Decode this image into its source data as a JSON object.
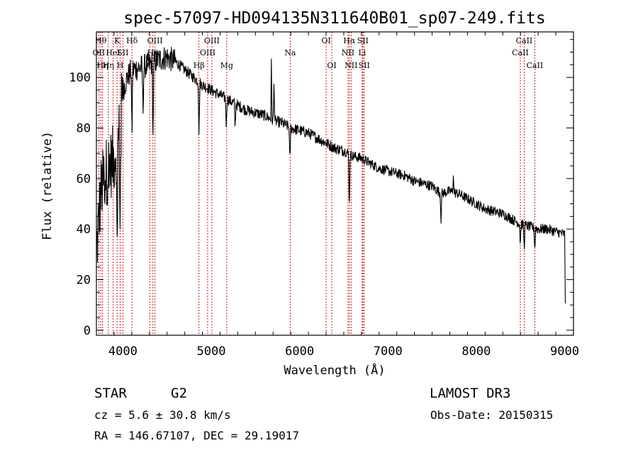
{
  "chart_data": {
    "type": "line",
    "title": "spec-57097-HD094135N311640B01_sp07-249.fits",
    "xlabel": "Wavelength (Å)",
    "ylabel": "Flux (relative)",
    "xlim": [
      3700,
      9100
    ],
    "ylim": [
      -2,
      118
    ],
    "x_ticks": [
      4000,
      5000,
      6000,
      7000,
      8000,
      9000
    ],
    "y_ticks": [
      0,
      20,
      40,
      60,
      80,
      100
    ],
    "continuum": [
      [
        3700,
        30
      ],
      [
        3750,
        55
      ],
      [
        3800,
        62
      ],
      [
        3850,
        65
      ],
      [
        3900,
        68
      ],
      [
        3950,
        75
      ],
      [
        4000,
        95
      ],
      [
        4050,
        100
      ],
      [
        4100,
        103
      ],
      [
        4200,
        104
      ],
      [
        4300,
        105
      ],
      [
        4400,
        107
      ],
      [
        4500,
        108
      ],
      [
        4600,
        106
      ],
      [
        4700,
        103
      ],
      [
        4800,
        100
      ],
      [
        4900,
        97
      ],
      [
        5000,
        95
      ],
      [
        5100,
        93
      ],
      [
        5200,
        91
      ],
      [
        5300,
        89
      ],
      [
        5400,
        87
      ],
      [
        5500,
        86
      ],
      [
        5600,
        85
      ],
      [
        5700,
        83
      ],
      [
        5800,
        82
      ],
      [
        5900,
        80
      ],
      [
        6000,
        79
      ],
      [
        6100,
        78
      ],
      [
        6200,
        76
      ],
      [
        6300,
        74
      ],
      [
        6400,
        72
      ],
      [
        6500,
        71
      ],
      [
        6600,
        69
      ],
      [
        6700,
        68
      ],
      [
        6800,
        66
      ],
      [
        6900,
        64
      ],
      [
        7000,
        63
      ],
      [
        7100,
        62
      ],
      [
        7200,
        61
      ],
      [
        7300,
        59
      ],
      [
        7400,
        58
      ],
      [
        7500,
        57
      ],
      [
        7600,
        54
      ],
      [
        7700,
        55
      ],
      [
        7800,
        54
      ],
      [
        7900,
        52
      ],
      [
        8000,
        50
      ],
      [
        8100,
        48
      ],
      [
        8200,
        47
      ],
      [
        8300,
        46
      ],
      [
        8400,
        44
      ],
      [
        8500,
        42
      ],
      [
        8600,
        41
      ],
      [
        8700,
        40
      ],
      [
        8800,
        40
      ],
      [
        8900,
        39
      ],
      [
        9000,
        38
      ],
      [
        9010,
        5
      ]
    ],
    "absorption_features": [
      [
        3934,
        48
      ],
      [
        3969,
        45
      ],
      [
        4102,
        28
      ],
      [
        4227,
        18
      ],
      [
        4340,
        30
      ],
      [
        4861,
        22
      ],
      [
        5170,
        12
      ],
      [
        5270,
        10
      ],
      [
        5890,
        15
      ],
      [
        6563,
        22
      ],
      [
        7600,
        10
      ],
      [
        8498,
        8
      ],
      [
        8542,
        10
      ],
      [
        8662,
        9
      ]
    ],
    "emission_features": [
      [
        5680,
        22
      ],
      [
        5710,
        18
      ],
      [
        7740,
        8
      ]
    ],
    "spectral_lines": [
      {
        "wavelength": 3727,
        "label": "OII",
        "tier": 1
      },
      {
        "wavelength": 3750,
        "label": "Hθ",
        "tier": 0
      },
      {
        "wavelength": 3770,
        "label": "Hη",
        "tier": 2
      },
      {
        "wavelength": 3835,
        "label": "Hη",
        "tier": 2
      },
      {
        "wavelength": 3889,
        "label": "HeI",
        "tier": 1
      },
      {
        "wavelength": 3934,
        "label": "K",
        "tier": 0
      },
      {
        "wavelength": 3969,
        "label": "H",
        "tier": 2
      },
      {
        "wavelength": 4000,
        "label": "SII",
        "tier": 1
      },
      {
        "wavelength": 4102,
        "label": "Hδ",
        "tier": 0
      },
      {
        "wavelength": 4304,
        "label": "G",
        "tier": 2
      },
      {
        "wavelength": 4340,
        "label": "Hγ",
        "tier": 1
      },
      {
        "wavelength": 4363,
        "label": "OIII",
        "tier": 0
      },
      {
        "wavelength": 4861,
        "label": "Hβ",
        "tier": 2
      },
      {
        "wavelength": 4959,
        "label": "OIII",
        "tier": 1
      },
      {
        "wavelength": 5007,
        "label": "OIII",
        "tier": 0
      },
      {
        "wavelength": 5175,
        "label": "Mg",
        "tier": 2
      },
      {
        "wavelength": 5893,
        "label": "Na",
        "tier": 1
      },
      {
        "wavelength": 6300,
        "label": "OI",
        "tier": 0
      },
      {
        "wavelength": 6364,
        "label": "OI",
        "tier": 2
      },
      {
        "wavelength": 6548,
        "label": "NII",
        "tier": 1
      },
      {
        "wavelength": 6563,
        "label": "Hα",
        "tier": 0
      },
      {
        "wavelength": 6583,
        "label": "NII",
        "tier": 2
      },
      {
        "wavelength": 6708,
        "label": "Li",
        "tier": 1
      },
      {
        "wavelength": 6716,
        "label": "SII",
        "tier": 0
      },
      {
        "wavelength": 6731,
        "label": "SII",
        "tier": 2
      },
      {
        "wavelength": 8498,
        "label": "CaII",
        "tier": 1
      },
      {
        "wavelength": 8542,
        "label": "CaII",
        "tier": 0
      },
      {
        "wavelength": 8662,
        "label": "CaII",
        "tier": 2
      }
    ]
  },
  "info": {
    "object_class": "STAR",
    "subclass": "G2",
    "survey": "LAMOST DR3",
    "redshift": "cz = 5.6 ± 30.8 km/s",
    "obs_date": "Obs-Date: 20150315",
    "coords": "RA = 146.67107, DEC =  29.19017"
  },
  "colors": {
    "line_marker": "#cc0000",
    "spectrum": "#000000",
    "axes": "#000000"
  }
}
